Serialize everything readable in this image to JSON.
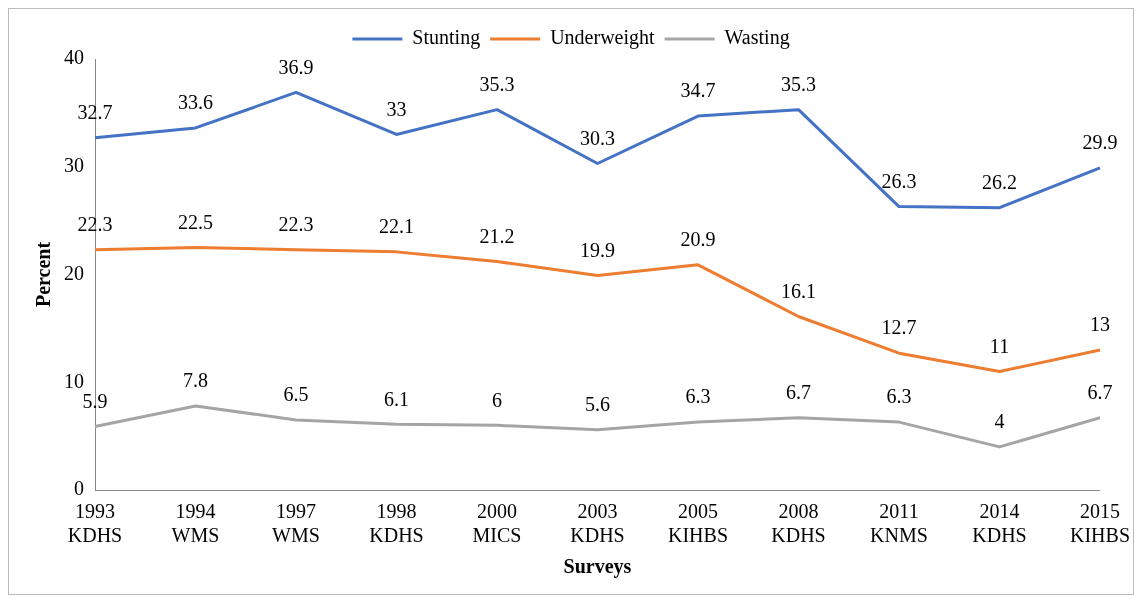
{
  "chart_data": {
    "type": "line",
    "categories": [
      "1993\nKDHS",
      "1994\nWMS",
      "1997\nWMS",
      "1998\nKDHS",
      "2000\nMICS",
      "2003\nKDHS",
      "2005\nKIHBS",
      "2008\nKDHS",
      "2011\nKNMS",
      "2014\nKDHS",
      "2015\nKIHBS"
    ],
    "series": [
      {
        "name": "Stunting",
        "color": "#4472c4",
        "values": [
          32.7,
          33.6,
          36.9,
          33,
          35.3,
          30.3,
          34.7,
          35.3,
          26.3,
          26.2,
          29.9
        ]
      },
      {
        "name": "Underweight",
        "color": "#ed7d31",
        "values": [
          22.3,
          22.5,
          22.3,
          22.1,
          21.2,
          19.9,
          20.9,
          16.1,
          12.7,
          11,
          13
        ]
      },
      {
        "name": "Wasting",
        "color": "#a5a5a5",
        "values": [
          5.9,
          7.8,
          6.5,
          6.1,
          6,
          5.6,
          6.3,
          6.7,
          6.3,
          4,
          6.7
        ]
      }
    ],
    "xlabel": "Surveys",
    "ylabel": "Percent",
    "ylim": [
      0,
      40
    ],
    "yticks": [
      0,
      10,
      20,
      30,
      40
    ],
    "grid": false,
    "legend": "top",
    "marker": "none",
    "line_style": "solid",
    "data_labels": true
  }
}
